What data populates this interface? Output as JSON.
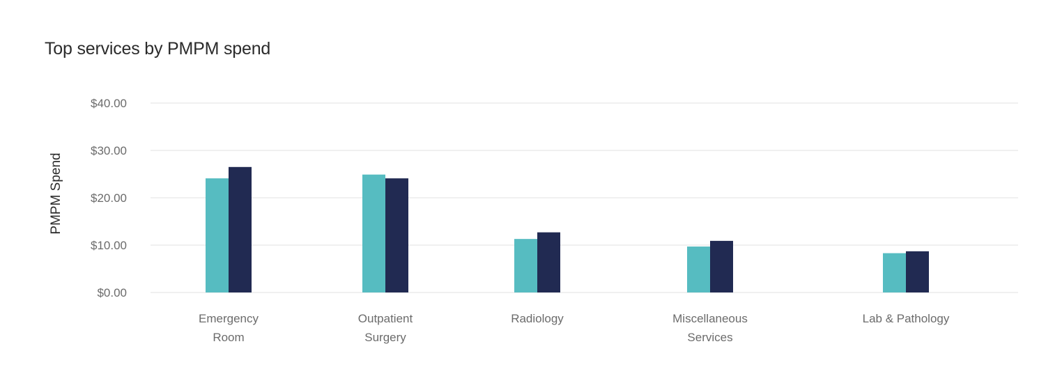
{
  "chart_data": {
    "type": "bar",
    "title": "Top services by PMPM spend",
    "xlabel": "",
    "ylabel": "PMPM Spend",
    "ylim": [
      0,
      40
    ],
    "yticks": [
      0,
      10,
      20,
      30,
      40
    ],
    "ytick_labels": [
      "$0.00",
      "$10.00",
      "$20.00",
      "$30.00",
      "$40.00"
    ],
    "grid": true,
    "legend": "none",
    "categories": [
      [
        "Emergency",
        "Room"
      ],
      [
        "Outpatient",
        "Surgery"
      ],
      [
        "Radiology"
      ],
      [
        "Miscellaneous",
        "Services"
      ],
      [
        "Lab & Pathology"
      ]
    ],
    "series": [
      {
        "values": [
          24.1,
          24.9,
          11.3,
          9.7,
          8.3
        ],
        "color": "#56bcc1"
      },
      {
        "values": [
          26.5,
          24.1,
          12.7,
          10.9,
          8.7
        ],
        "color": "#212a52"
      }
    ]
  }
}
